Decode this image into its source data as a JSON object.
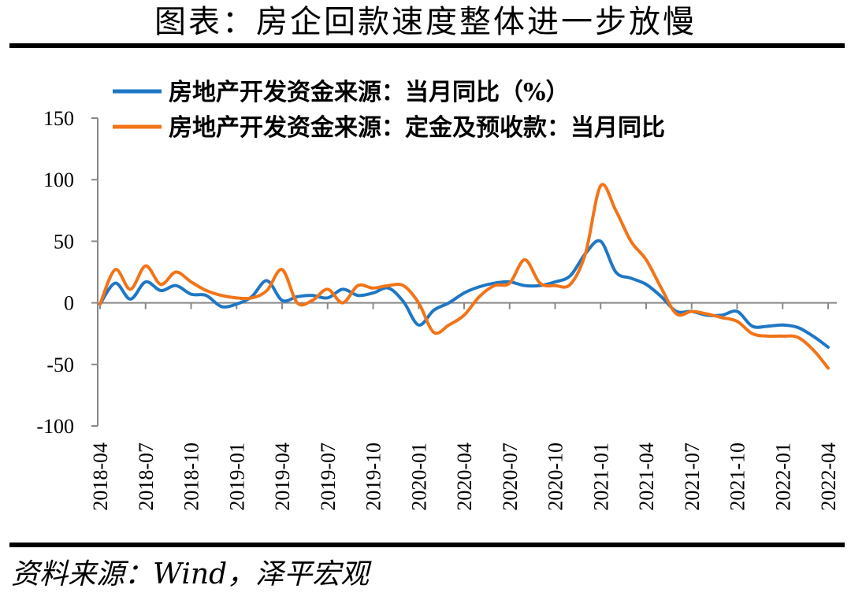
{
  "title": "图表：房企回款速度整体进一步放慢",
  "source": "资料来源：Wind，泽平宏观",
  "chart_data": {
    "type": "line",
    "title": "图表：房企回款速度整体进一步放慢",
    "xlabel": "",
    "ylabel": "",
    "ylim": [
      -100,
      150
    ],
    "yticks": [
      150,
      100,
      50,
      0,
      -50,
      -100
    ],
    "x_tick_labels": [
      "2018-04",
      "2018-07",
      "2018-10",
      "2019-01",
      "2019-04",
      "2019-07",
      "2019-10",
      "2020-01",
      "2020-04",
      "2020-07",
      "2020-10",
      "2021-01",
      "2021-04",
      "2021-07",
      "2021-10",
      "2022-01",
      "2022-04"
    ],
    "x": [
      "2018-04",
      "2018-05",
      "2018-06",
      "2018-07",
      "2018-08",
      "2018-09",
      "2018-10",
      "2018-11",
      "2018-12",
      "2019-01",
      "2019-02",
      "2019-03",
      "2019-04",
      "2019-05",
      "2019-06",
      "2019-07",
      "2019-08",
      "2019-09",
      "2019-10",
      "2019-11",
      "2019-12",
      "2020-01",
      "2020-02",
      "2020-03",
      "2020-04",
      "2020-05",
      "2020-06",
      "2020-07",
      "2020-08",
      "2020-09",
      "2020-10",
      "2020-11",
      "2020-12",
      "2021-01",
      "2021-02",
      "2021-03",
      "2021-04",
      "2021-05",
      "2021-06",
      "2021-07",
      "2021-08",
      "2021-09",
      "2021-10",
      "2021-11",
      "2021-12",
      "2022-01",
      "2022-02",
      "2022-03",
      "2022-04"
    ],
    "legend_position": "top-left",
    "grid": false,
    "series": [
      {
        "name": "房地产开发资金来源：当月同比（%）",
        "color": "#1f77c4",
        "values": [
          -1,
          16,
          3,
          17,
          10,
          14,
          7,
          6,
          -3,
          -1,
          5,
          18,
          2,
          5,
          6,
          4,
          11,
          6,
          8,
          12,
          1,
          -18,
          -6,
          0,
          8,
          13,
          16,
          17,
          14,
          14,
          17,
          22,
          40,
          50,
          25,
          20,
          15,
          5,
          -7,
          -7,
          -10,
          -10,
          -7,
          -19,
          -19,
          -18,
          -20,
          -27,
          -36
        ]
      },
      {
        "name": "房地产开发资金来源：定金及预收款：当月同比",
        "color": "#f27418",
        "values": [
          -1,
          27,
          11,
          30,
          15,
          25,
          17,
          10,
          6,
          4,
          4,
          10,
          27,
          0,
          2,
          11,
          0,
          14,
          12,
          14,
          14,
          0,
          -24,
          -18,
          -10,
          5,
          14,
          16,
          35,
          16,
          14,
          15,
          40,
          95,
          75,
          50,
          35,
          12,
          -9,
          -7,
          -9,
          -12,
          -15,
          -25,
          -27,
          -27,
          -28,
          -38,
          -53
        ]
      }
    ]
  }
}
